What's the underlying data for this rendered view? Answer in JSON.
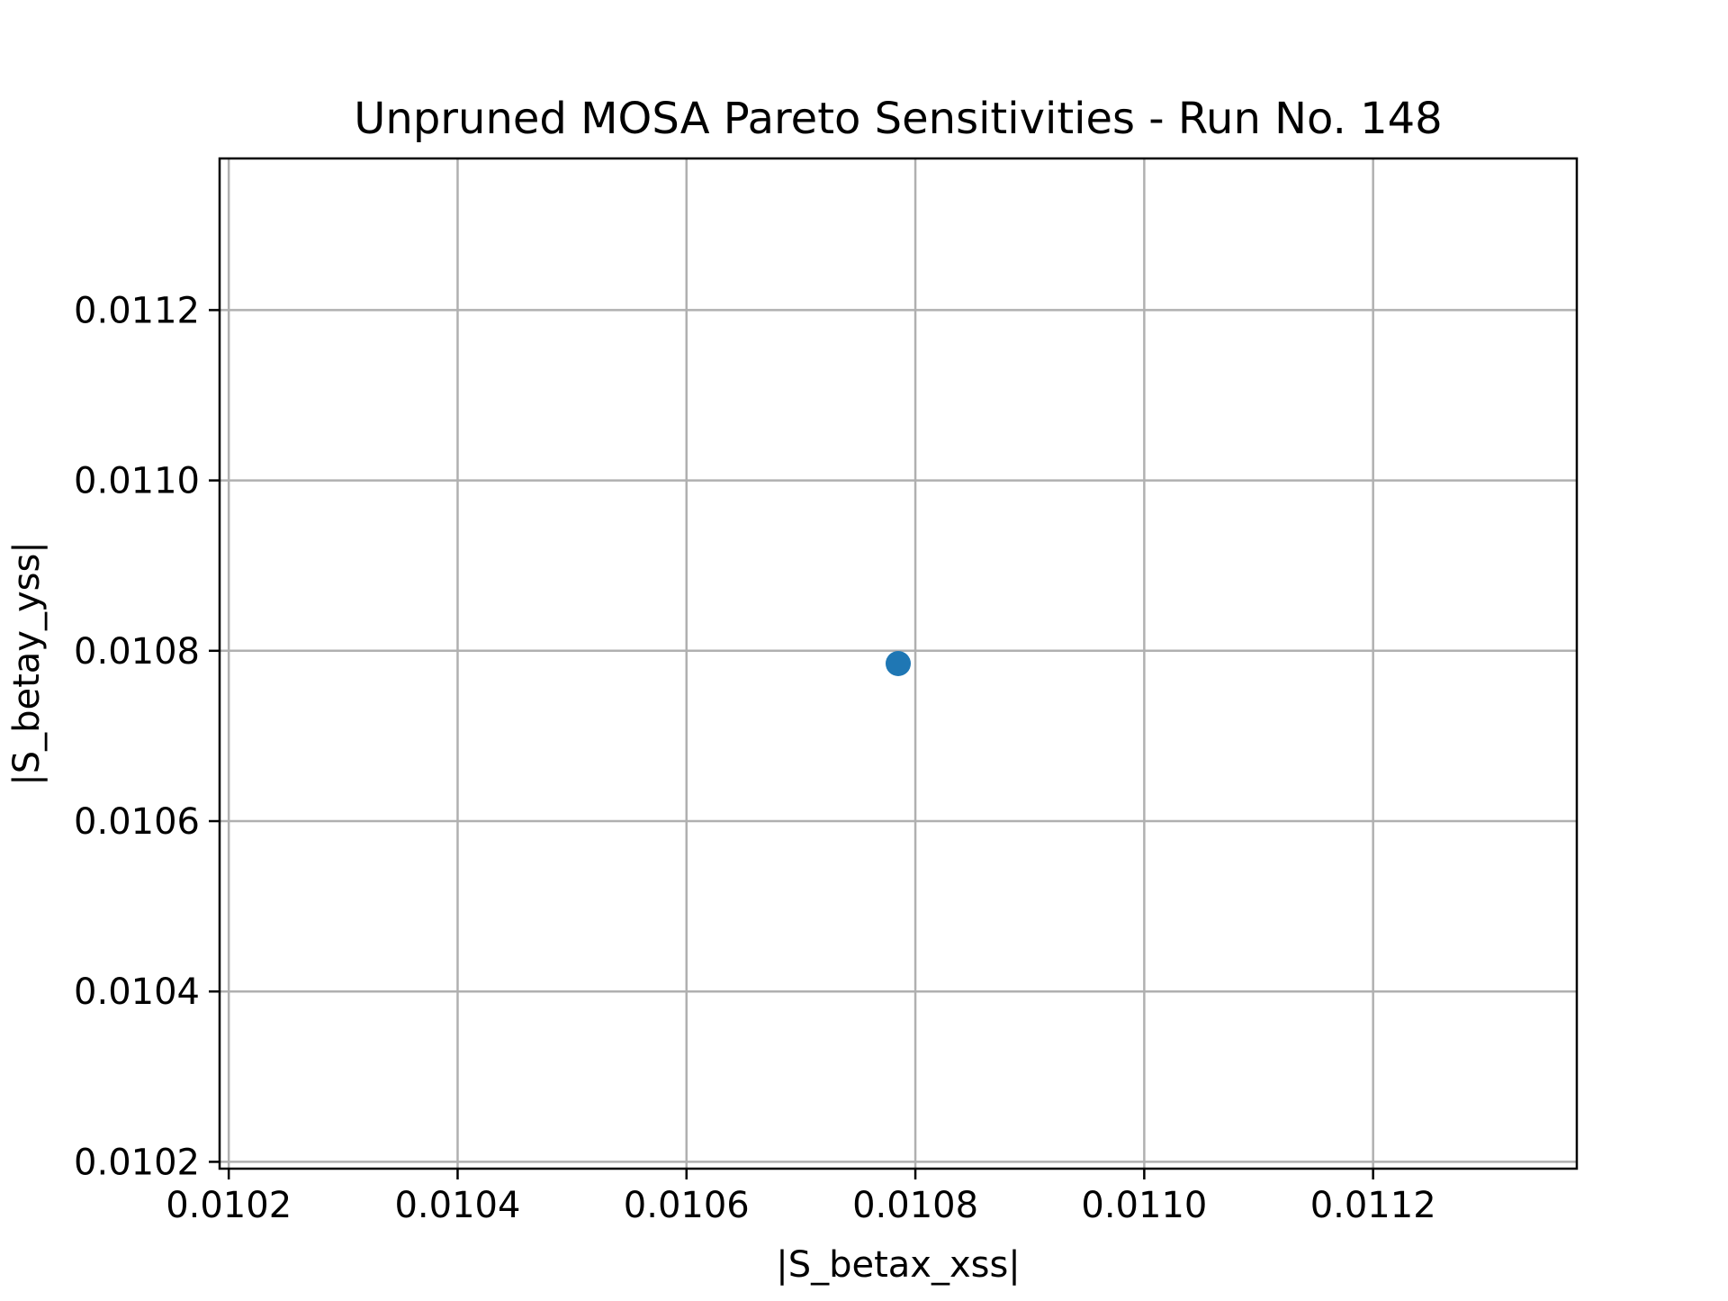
{
  "chart_data": {
    "type": "scatter",
    "title": "Unpruned MOSA Pareto Sensitivities - Run No. 148",
    "xlabel": "|S_betax_xss|",
    "ylabel": "|S_betay_yss|",
    "xlim": [
      0.010192,
      0.011378
    ],
    "ylim": [
      0.010192,
      0.011378
    ],
    "xticks": [
      0.0102,
      0.0104,
      0.0106,
      0.0108,
      0.011,
      0.0112
    ],
    "yticks": [
      0.0102,
      0.0104,
      0.0106,
      0.0108,
      0.011,
      0.0112
    ],
    "xtick_labels": [
      "0.0102",
      "0.0104",
      "0.0106",
      "0.0108",
      "0.0110",
      "0.0112"
    ],
    "ytick_labels": [
      "0.0102",
      "0.0104",
      "0.0106",
      "0.0108",
      "0.0110",
      "0.0112"
    ],
    "grid": true,
    "series": [
      {
        "color": "#1f77b4",
        "points": [
          {
            "x": 0.010785,
            "y": 0.010785
          }
        ]
      }
    ]
  }
}
